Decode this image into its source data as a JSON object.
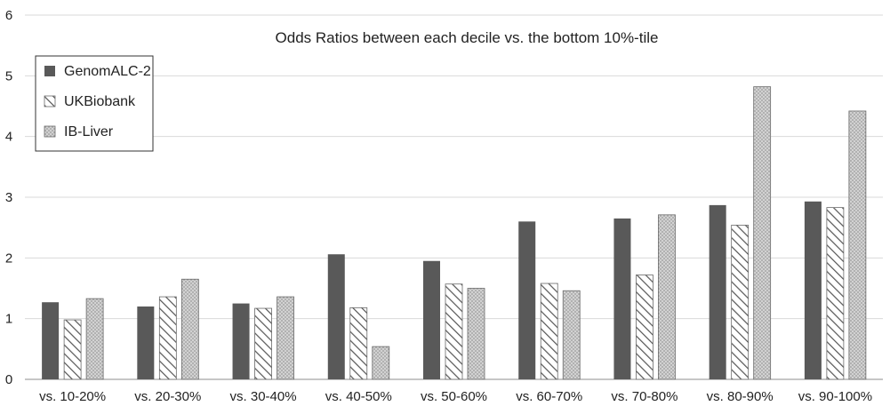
{
  "chart_data": {
    "type": "bar",
    "title": "Odds Ratios between each decile vs. the bottom 10%-tile",
    "xlabel": "",
    "ylabel": "",
    "ylim": [
      0,
      6
    ],
    "yticks": [
      0,
      1,
      2,
      3,
      4,
      5,
      6
    ],
    "grid": true,
    "legend_position": "top-left",
    "categories": [
      "vs. 10-20%",
      "vs. 20-30%",
      "vs. 30-40%",
      "vs. 40-50%",
      "vs. 50-60%",
      "vs. 60-70%",
      "vs. 70-80%",
      "vs. 80-90%",
      "vs. 90-100%"
    ],
    "series": [
      {
        "name": "GenomALC-2",
        "style": "solid",
        "color": "#595959",
        "values": [
          1.27,
          1.2,
          1.25,
          2.06,
          1.95,
          2.6,
          2.65,
          2.87,
          2.93
        ]
      },
      {
        "name": "UKBiobank",
        "style": "hatched",
        "color": "#ffffff",
        "values": [
          0.98,
          1.36,
          1.17,
          1.18,
          1.57,
          1.58,
          1.72,
          2.54,
          2.83
        ]
      },
      {
        "name": "IB-Liver",
        "style": "dotted",
        "color": "#c8c8c8",
        "values": [
          1.33,
          1.65,
          1.36,
          0.54,
          1.5,
          1.46,
          2.71,
          4.82,
          4.42
        ]
      }
    ]
  }
}
